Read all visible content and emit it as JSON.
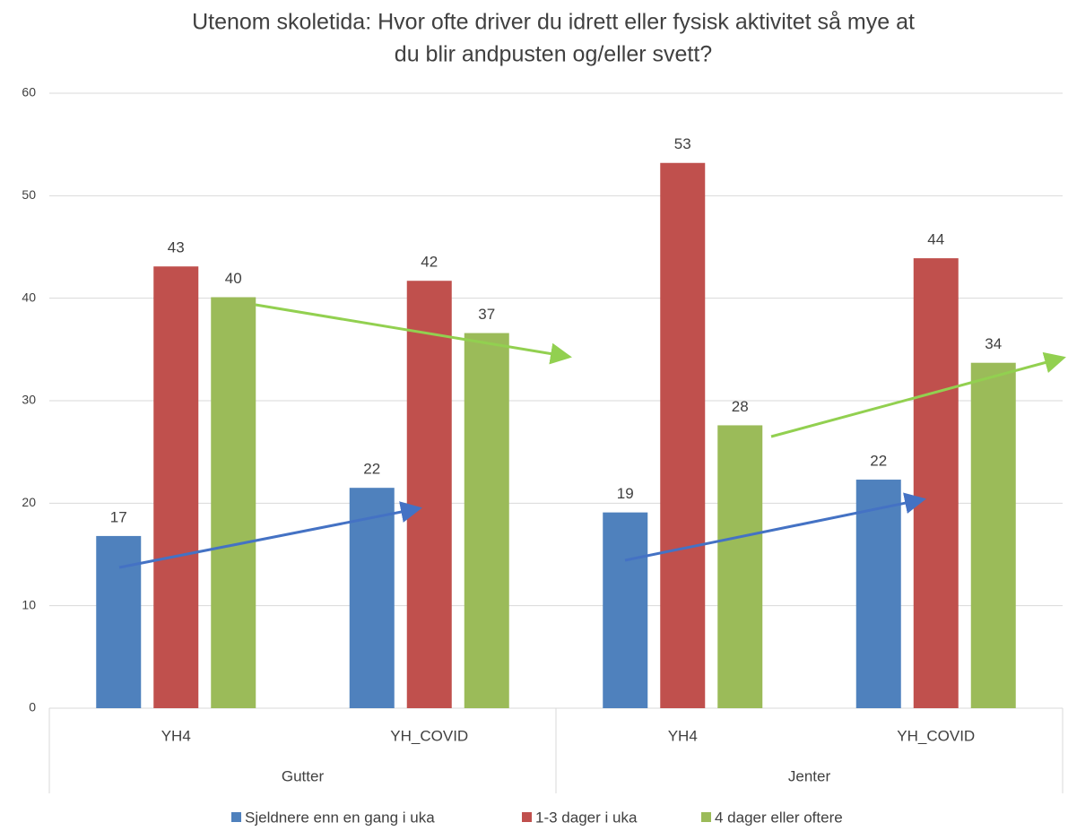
{
  "chart_data": {
    "type": "bar",
    "title": [
      "Utenom skoletida: Hvor ofte driver du idrett eller fysisk aktivitet så mye at",
      "du blir andpusten og/eller svett?"
    ],
    "categories": [
      "YH4",
      "YH_COVID",
      "YH4",
      "YH_COVID"
    ],
    "groups": [
      "Gutter",
      "Jenter"
    ],
    "series": [
      {
        "name": "Sjeldnere enn en gang i uka",
        "color": "#4f81bd",
        "values": [
          16.8,
          21.5,
          19.1,
          22.3
        ],
        "value_labels": [
          "17",
          "22",
          "19",
          "22"
        ]
      },
      {
        "name": "1-3 dager i uka",
        "color": "#c0504d",
        "values": [
          43.1,
          41.7,
          53.2,
          43.9
        ],
        "value_labels": [
          "43",
          "42",
          "53",
          "44"
        ]
      },
      {
        "name": "4 dager eller oftere",
        "color": "#9bbb59",
        "values": [
          40.1,
          36.6,
          27.6,
          33.7
        ],
        "value_labels": [
          "40",
          "37",
          "28",
          "34"
        ]
      }
    ],
    "ylim": [
      0,
      60
    ],
    "yticks": [
      0,
      10,
      20,
      30,
      40,
      50,
      60
    ],
    "grid": true,
    "legend": "bottom"
  }
}
